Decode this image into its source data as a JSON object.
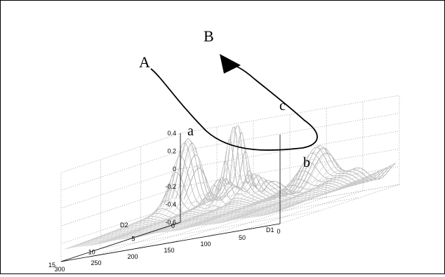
{
  "chart_data": {
    "type": "surface",
    "title": "",
    "xlabel": "D1",
    "ylabel": "D2",
    "zlabel": "",
    "x_ticks": [
      "0",
      "50",
      "100",
      "150",
      "200",
      "250",
      "300"
    ],
    "y_ticks": [
      "0",
      "5",
      "10",
      "15"
    ],
    "z_ticks": [
      "0.4",
      "0.2",
      "0",
      "-0.2",
      "-0.4",
      "-0.6"
    ],
    "xlim": [
      0,
      300
    ],
    "ylim": [
      0,
      15
    ],
    "zlim": [
      -0.6,
      0.4
    ],
    "grid": true,
    "peaks": [
      {
        "label": "A",
        "d1": 270,
        "d2": 1.5,
        "z": 0.3
      },
      {
        "label": "B",
        "d1": 200,
        "d2": 2,
        "z": 0.42
      }
    ],
    "path_labels": [
      "a",
      "b",
      "c"
    ],
    "colors": {
      "surface": "#b8b8b8",
      "path": "#000000",
      "grid": "#9a9a9a"
    }
  }
}
